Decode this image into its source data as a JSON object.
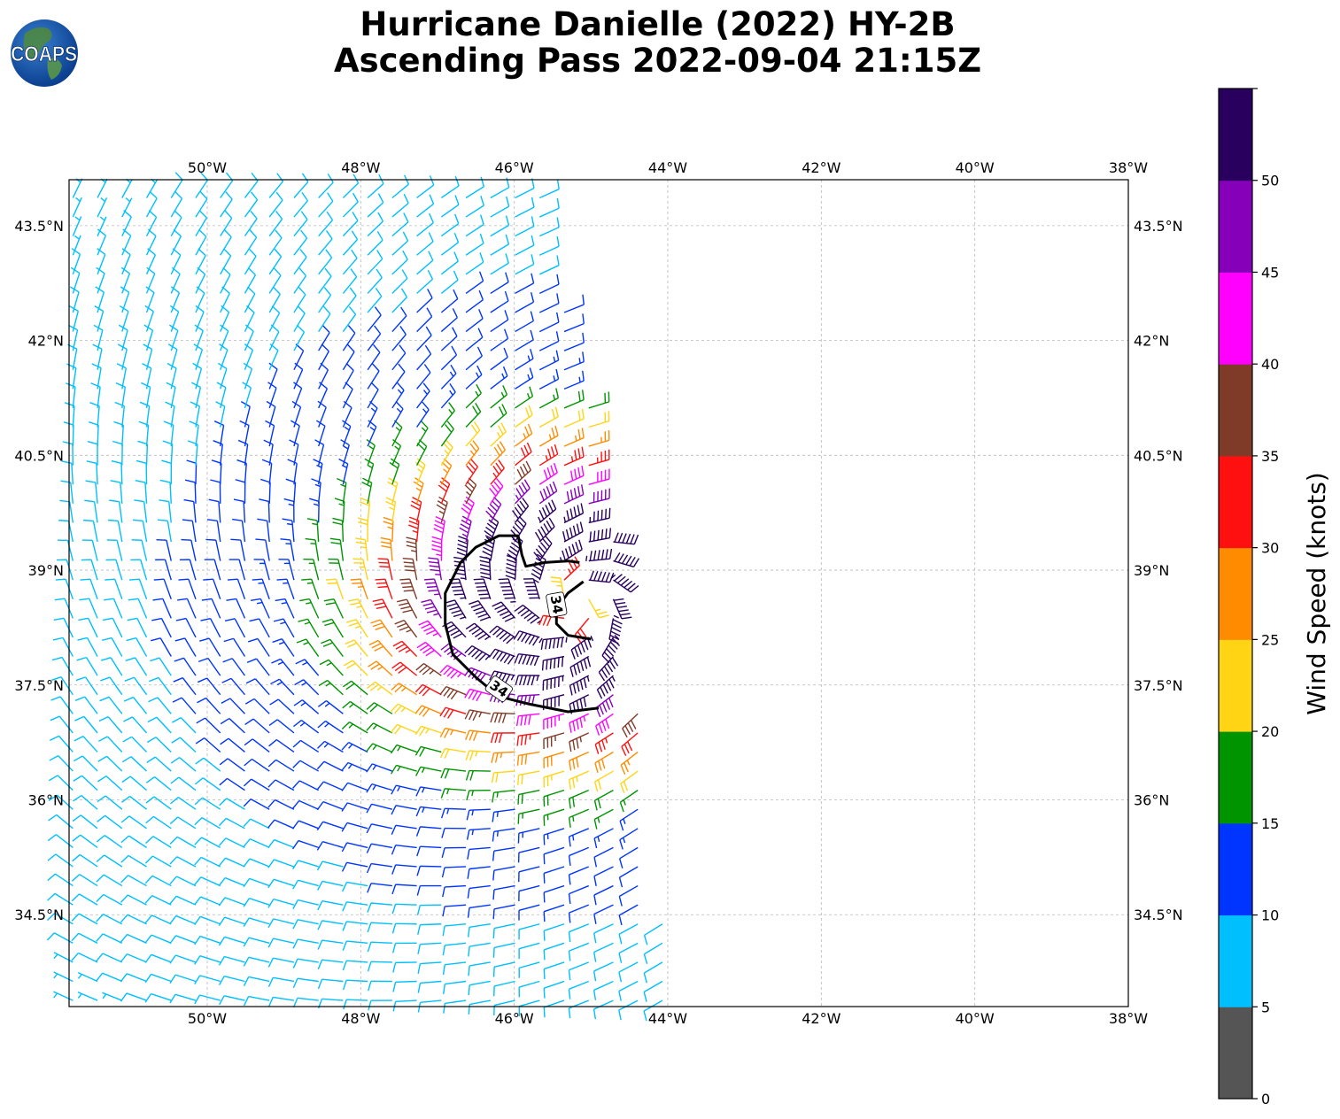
{
  "title": {
    "line1": "Hurricane Danielle (2022) HY-2B",
    "line2": "Ascending Pass 2022-09-04 21:15Z"
  },
  "logo": {
    "text": "COAPS",
    "icon": "coaps-globe-logo"
  },
  "map": {
    "lon_range": [
      -51.8,
      -38.0
    ],
    "lat_range": [
      33.3,
      44.1
    ],
    "lon_ticks": [
      -50,
      -48,
      -46,
      -44,
      -42,
      -40,
      -38
    ],
    "lat_ticks": [
      34.5,
      36,
      37.5,
      39,
      40.5,
      42,
      43.5
    ],
    "lon_tick_labels": [
      "50°W",
      "48°W",
      "46°W",
      "44°W",
      "42°W",
      "40°W",
      "38°W"
    ],
    "lat_tick_labels": [
      "34.5°N",
      "36°N",
      "37.5°N",
      "39°N",
      "40.5°N",
      "42°N",
      "43.5°N"
    ],
    "gridlines": true,
    "storm_center": {
      "lon": -45.2,
      "lat": 38.6
    },
    "swath_east_edge": [
      {
        "lat": 44.1,
        "lon": -45.7
      },
      {
        "lat": 41.5,
        "lon": -45.1
      },
      {
        "lat": 39.0,
        "lon": -44.6
      },
      {
        "lat": 36.5,
        "lon": -44.3
      },
      {
        "lat": 34.0,
        "lon": -44.0
      },
      {
        "lat": 33.3,
        "lon": -43.8
      }
    ],
    "contour": {
      "level": 34,
      "label": "34",
      "units": "knots",
      "points": [
        [
          -44.9,
          37.2
        ],
        [
          -45.3,
          37.15
        ],
        [
          -45.8,
          37.25
        ],
        [
          -46.2,
          37.35
        ],
        [
          -46.5,
          37.6
        ],
        [
          -46.8,
          37.9
        ],
        [
          -46.9,
          38.3
        ],
        [
          -46.9,
          38.7
        ],
        [
          -46.7,
          39.1
        ],
        [
          -46.5,
          39.3
        ],
        [
          -46.2,
          39.45
        ],
        [
          -45.95,
          39.45
        ],
        [
          -45.9,
          39.2
        ],
        [
          -45.85,
          39.05
        ],
        [
          -45.6,
          39.1
        ],
        [
          -45.3,
          39.12
        ],
        [
          -45.15,
          39.1
        ]
      ],
      "inner_points": [
        [
          -45.1,
          38.85
        ],
        [
          -45.3,
          38.7
        ],
        [
          -45.45,
          38.5
        ],
        [
          -45.45,
          38.3
        ],
        [
          -45.3,
          38.15
        ],
        [
          -45.0,
          38.1
        ]
      ],
      "label_positions": [
        {
          "lon": -46.2,
          "lat": 37.45,
          "angle": 35
        },
        {
          "lon": -45.45,
          "lat": 38.55,
          "angle": 80
        }
      ]
    }
  },
  "colorbar": {
    "title": "Wind Speed (knots)",
    "ticks": [
      "0",
      "5",
      "10",
      "15",
      "20",
      "25",
      "30",
      "35",
      "40",
      "45",
      "50"
    ],
    "bins": [
      {
        "min": 0,
        "max": 5,
        "color": "#555555"
      },
      {
        "min": 5,
        "max": 10,
        "color": "#00bfff"
      },
      {
        "min": 10,
        "max": 15,
        "color": "#0035ff"
      },
      {
        "min": 15,
        "max": 20,
        "color": "#009400"
      },
      {
        "min": 20,
        "max": 25,
        "color": "#ffd415"
      },
      {
        "min": 25,
        "max": 30,
        "color": "#ff8c00"
      },
      {
        "min": 30,
        "max": 35,
        "color": "#ff1010"
      },
      {
        "min": 35,
        "max": 40,
        "color": "#7f3b28"
      },
      {
        "min": 40,
        "max": 45,
        "color": "#ff00ff"
      },
      {
        "min": 45,
        "max": 50,
        "color": "#8500b8"
      },
      {
        "min": 50,
        "max": 55,
        "color": "#2a005e"
      }
    ]
  }
}
